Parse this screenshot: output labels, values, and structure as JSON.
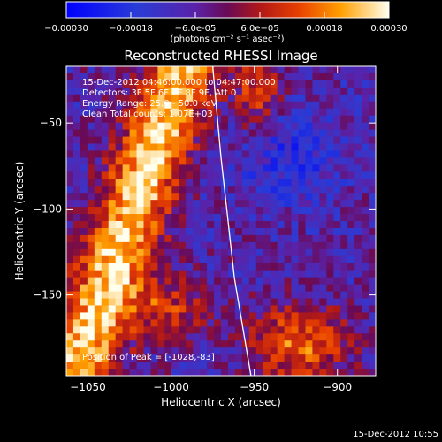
{
  "colorbar": {
    "tick_labels": [
      "-0.00030",
      "-0.00018",
      "-6.0e-05",
      "6.0e-05",
      "0.00018",
      "0.00030"
    ],
    "unit_label": "(photons cm⁻² s⁻¹ asec⁻²)",
    "range": [
      -0.0003,
      0.0003
    ]
  },
  "chart_data": {
    "type": "heatmap",
    "title": "Reconstructed RHESSI Image",
    "xlabel": "Heliocentric X (arcsec)",
    "ylabel": "Heliocentric Y (arcsec)",
    "xlim": [
      -1063,
      -877
    ],
    "ylim": [
      -197,
      -17
    ],
    "x_ticks": [
      "-1050",
      "-1000",
      "-950",
      "-900"
    ],
    "y_ticks": [
      "-50",
      "-100",
      "-150"
    ],
    "annotations": [
      "15-Dec-2012 04:46:00.000 to 04:47:00.000",
      "Detectors: 3F 5F 6F 7F 8F 9F, Att 0",
      "Energy Range: 25.0 - 50.0 keV",
      "Clean     Total counts: 1.07E+03"
    ],
    "peak_label": "Position of Peak = [-1028,-83]",
    "peak": [
      -1028,
      -83
    ],
    "limb_curve": [
      [
        -975,
        -17
      ],
      [
        -970,
        -70
      ],
      [
        -962,
        -140
      ],
      [
        -952,
        -197
      ]
    ]
  },
  "footer": {
    "timestamp": "15-Dec-2012 10:55"
  }
}
